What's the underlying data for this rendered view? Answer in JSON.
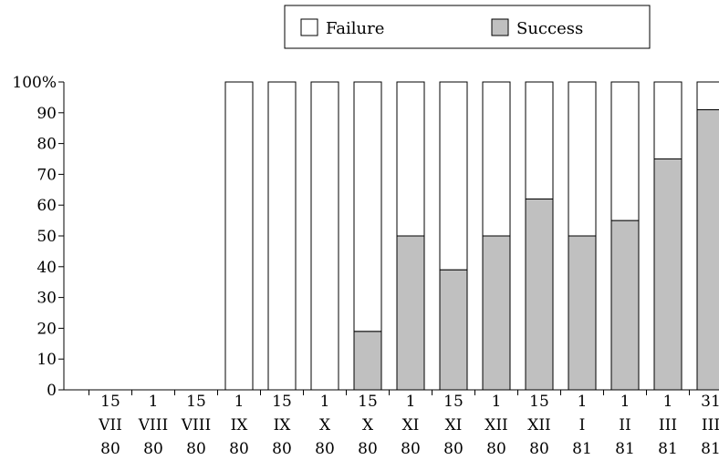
{
  "chart_data": {
    "type": "bar",
    "stacked": true,
    "ylim": [
      0,
      100
    ],
    "yticks": [
      "0",
      "10",
      "20",
      "30",
      "40",
      "50",
      "60",
      "70",
      "80",
      "90",
      "100%"
    ],
    "categories": [
      [
        "15",
        "VII",
        "80"
      ],
      [
        "1",
        "VIII",
        "80"
      ],
      [
        "15",
        "VIII",
        "80"
      ],
      [
        "1",
        "IX",
        "80"
      ],
      [
        "15",
        "IX",
        "80"
      ],
      [
        "1",
        "X",
        "80"
      ],
      [
        "15",
        "X",
        "80"
      ],
      [
        "1",
        "XI",
        "80"
      ],
      [
        "15",
        "XI",
        "80"
      ],
      [
        "1",
        "XII",
        "80"
      ],
      [
        "15",
        "XII",
        "80"
      ],
      [
        "1",
        "I",
        "81"
      ],
      [
        "1",
        "II",
        "81"
      ],
      [
        "1",
        "III",
        "81"
      ],
      [
        "31",
        "III",
        "81"
      ]
    ],
    "series": [
      {
        "name": "Success",
        "color": "#c0c0c0",
        "values": [
          0,
          0,
          0,
          0,
          0,
          0,
          19,
          50,
          39,
          50,
          62,
          50,
          55,
          75,
          91
        ]
      },
      {
        "name": "Failure",
        "color": "#ffffff",
        "values": [
          0,
          0,
          0,
          100,
          100,
          100,
          81,
          50,
          61,
          50,
          38,
          50,
          45,
          25,
          9
        ]
      }
    ],
    "legend": [
      "Failure",
      "Success"
    ],
    "legend_position": "top-right",
    "grid": false
  }
}
